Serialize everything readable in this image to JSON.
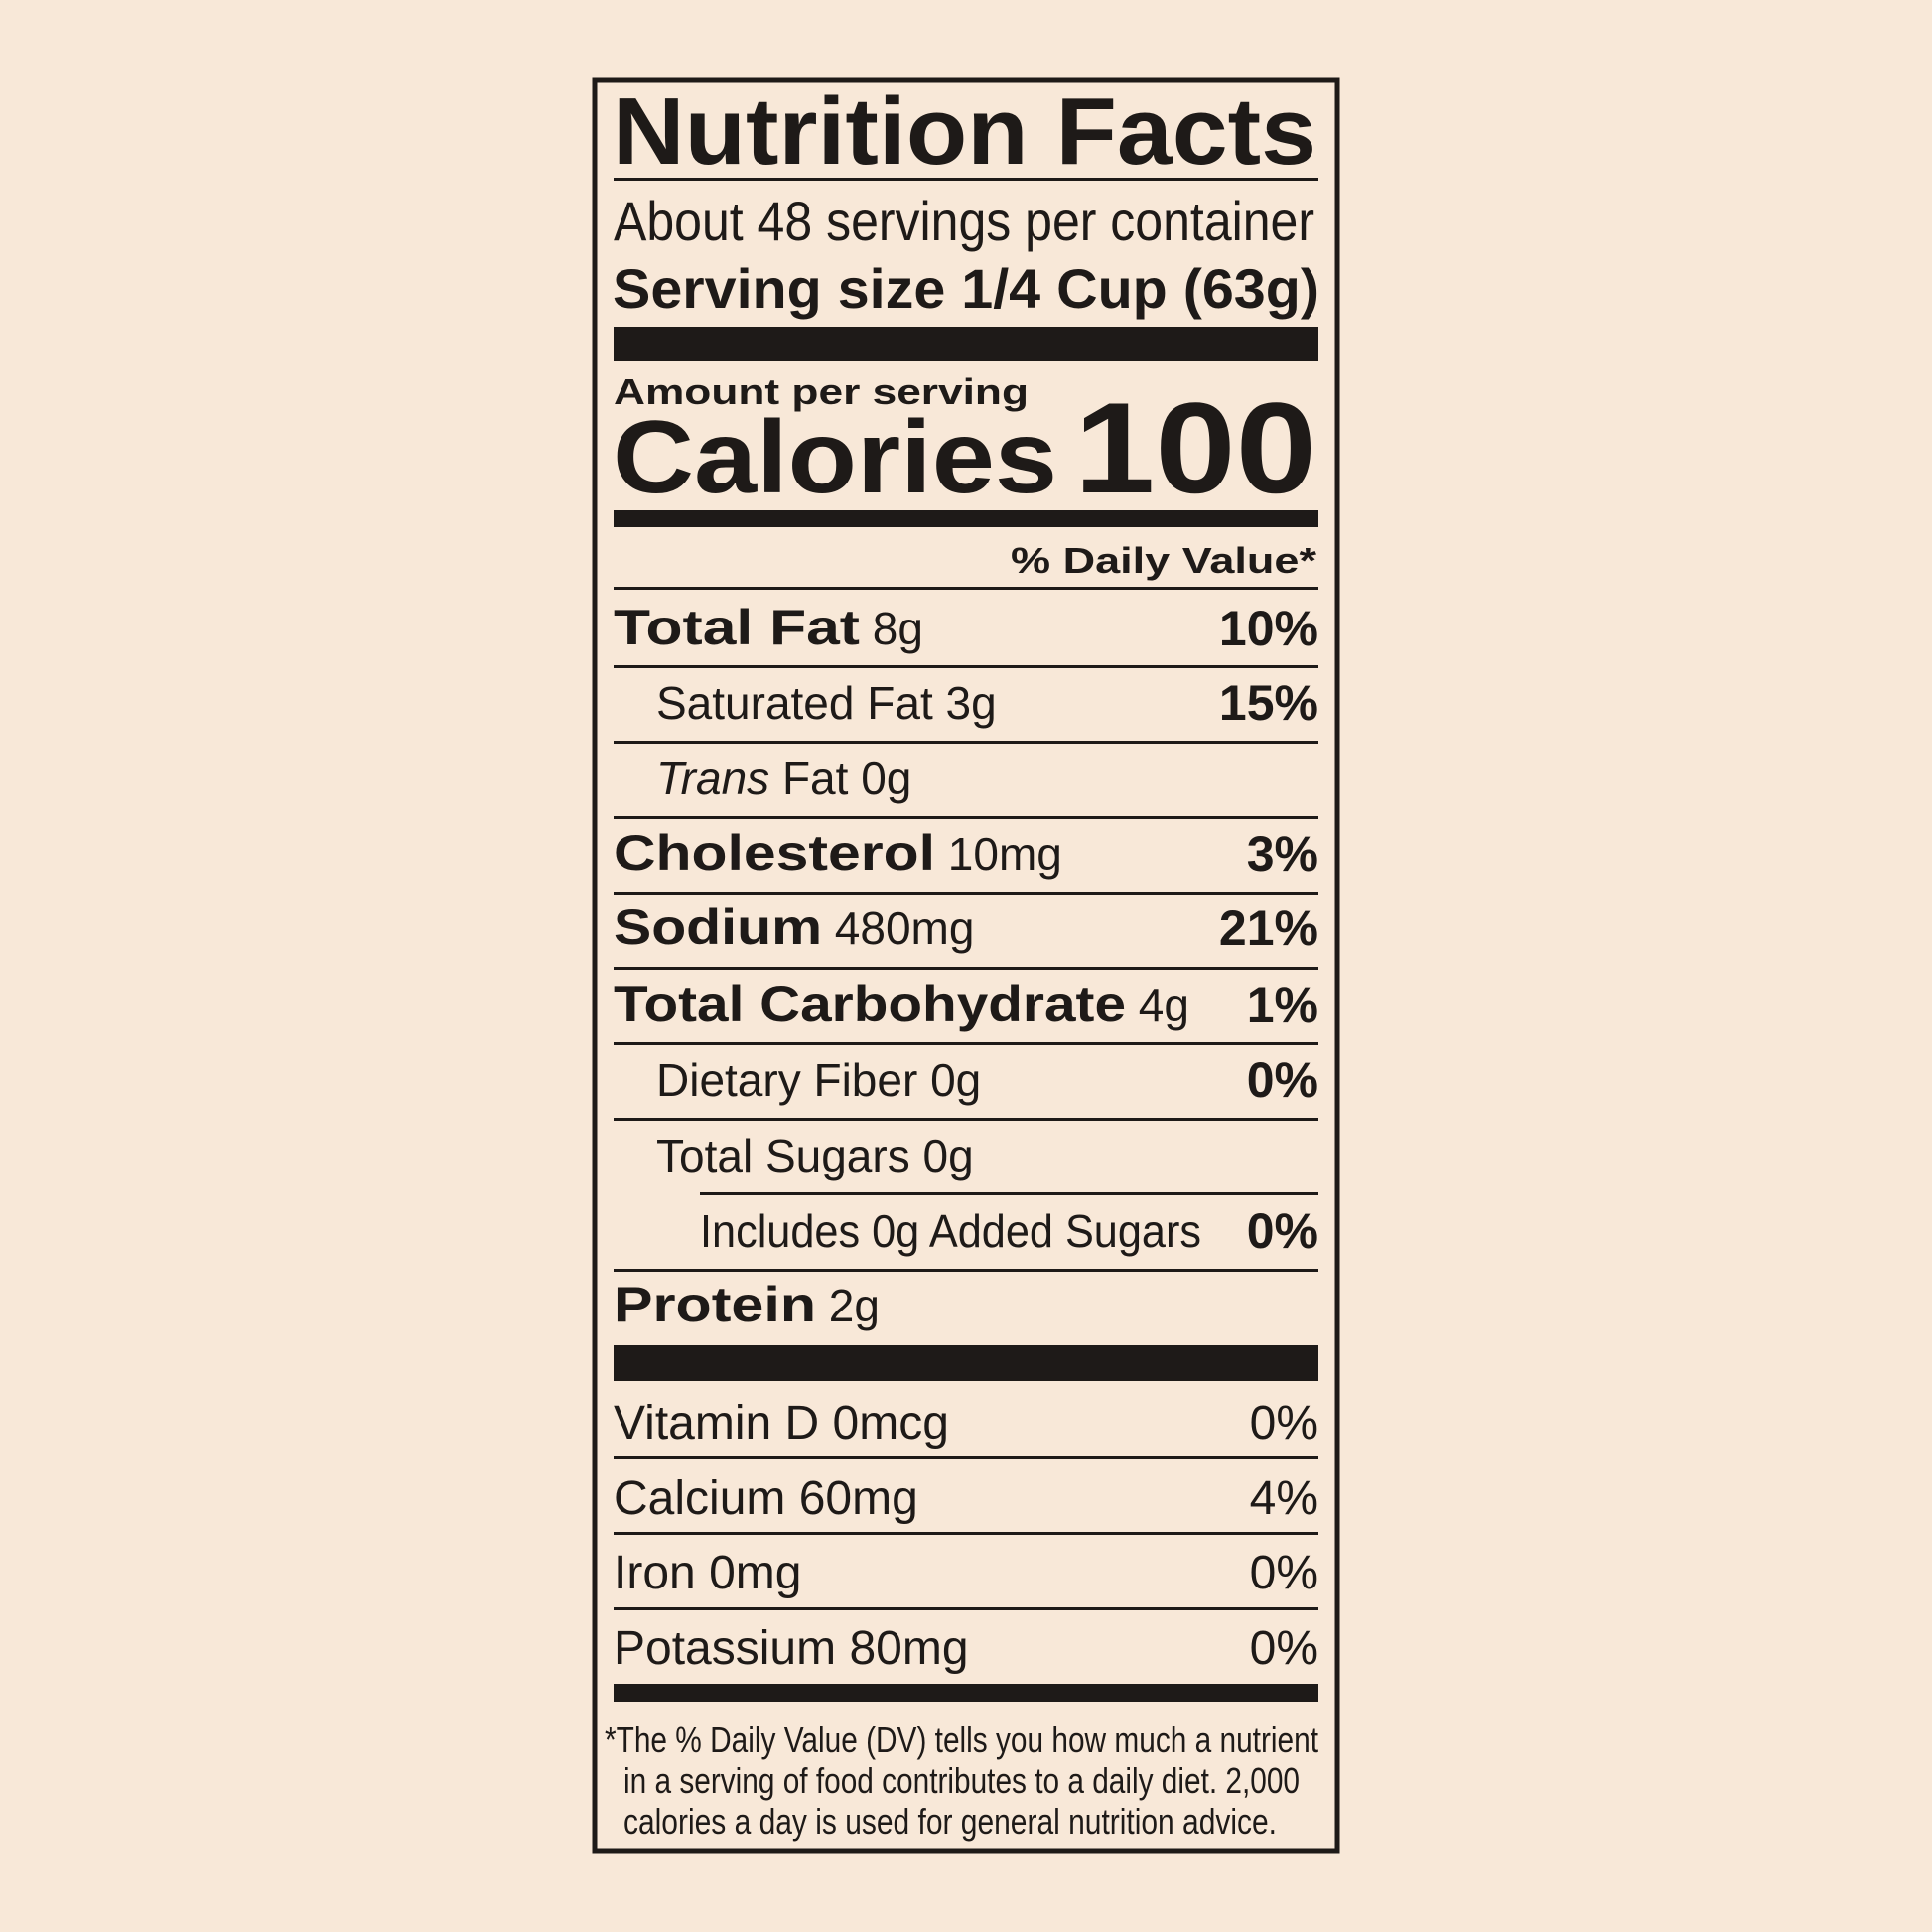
{
  "colors": {
    "background": "#f8e8d8",
    "ink": "#1e1a18"
  },
  "label": {
    "title": "Nutrition Facts",
    "servings_per_container": "About 48 servings per container",
    "serving_size_label": "Serving size",
    "serving_size_value": "1/4 Cup (63g)",
    "amount_per_serving": "Amount per serving",
    "calories_label": "Calories",
    "calories_value": "100",
    "daily_value_header": "% Daily Value*",
    "nutrients": [
      {
        "name": "Total Fat",
        "amount": "8g",
        "dv": "10%"
      },
      {
        "name": "Saturated Fat",
        "amount": "3g",
        "dv": "15%"
      },
      {
        "name_italic": "Trans",
        "name": "Fat",
        "amount": "0g",
        "dv": ""
      },
      {
        "name": "Cholesterol",
        "amount": "10mg",
        "dv": "3%"
      },
      {
        "name": "Sodium",
        "amount": "480mg",
        "dv": "21%"
      },
      {
        "name": "Total Carbohydrate",
        "amount": "4g",
        "dv": "1%"
      },
      {
        "name": "Dietary Fiber",
        "amount": "0g",
        "dv": "0%"
      },
      {
        "name": "Total Sugars",
        "amount": "0g",
        "dv": ""
      },
      {
        "name": "Includes 0g Added Sugars",
        "amount": "",
        "dv": "0%"
      },
      {
        "name": "Protein",
        "amount": "2g",
        "dv": ""
      }
    ],
    "vitamins": [
      {
        "name": "Vitamin D",
        "amount": "0mcg",
        "dv": "0%"
      },
      {
        "name": "Calcium",
        "amount": "60mg",
        "dv": "4%"
      },
      {
        "name": "Iron",
        "amount": "0mg",
        "dv": "0%"
      },
      {
        "name": "Potassium",
        "amount": "80mg",
        "dv": "0%"
      }
    ],
    "footnote": [
      "*The % Daily Value (DV) tells you how much a nutrient",
      "in a serving of food contributes to a daily diet. 2,000",
      "calories a day is used for general nutrition advice."
    ]
  }
}
